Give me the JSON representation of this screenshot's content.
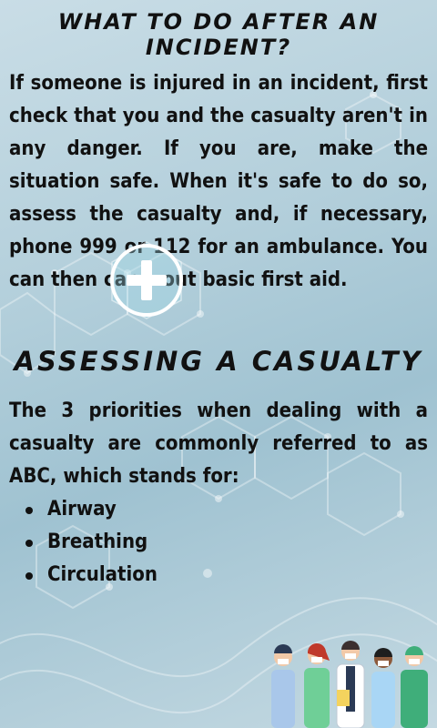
{
  "section1": {
    "title": "What to do after an incident?",
    "paragraph": "If someone is injured in an incident, first check that you and the casualty aren't in any danger. If you are, make the situation safe. When it's safe to do so, assess the casualty and, if necessary, phone 999 or 112 for an ambulance. You can then carry out basic first aid."
  },
  "section2": {
    "title": "Assessing a casualty",
    "paragraph": "The 3 priorities when dealing with a casualty are commonly referred to as ABC, which stands for:",
    "items": [
      "Airway",
      "Breathing",
      "Circulation"
    ]
  },
  "icons": {
    "plus": "plus-in-hexagon-icon",
    "illustration": "medical-staff-illustration"
  },
  "colors": {
    "background": "#b3cfdb",
    "text": "#111111",
    "icon": "#ffffff"
  }
}
